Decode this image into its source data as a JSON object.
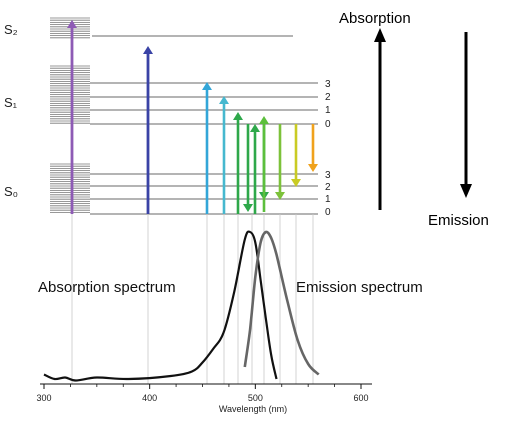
{
  "diagram": {
    "state_labels": {
      "s2": "S₂",
      "s1": "S₁",
      "s0": "S₀"
    },
    "vibrational_levels_s1": [
      "3",
      "2",
      "1",
      "0"
    ],
    "vibrational_levels_s0": [
      "3",
      "2",
      "1",
      "0"
    ],
    "legend": {
      "absorption": "Absorption",
      "emission": "Emission"
    },
    "spectra_labels": {
      "absorption": "Absorption spectrum",
      "emission": "Emission spectrum"
    },
    "arrow_colors": {
      "purple": "#8e5bb5",
      "blue": "#3a43a6",
      "cyan": "#33a6d8",
      "teal": "#46b8cf",
      "green": "#2ea84a",
      "lime": "#7cc23a",
      "yellow": "#c9cb24",
      "orange": "#f0a21c"
    }
  },
  "chart_data": {
    "type": "line",
    "xlabel": "Wavelength (nm)",
    "xlim": [
      300,
      600
    ],
    "x_ticks": [
      "300",
      "400",
      "500",
      "600"
    ],
    "series": [
      {
        "name": "Absorption spectrum",
        "x": [
          300,
          310,
          320,
          330,
          350,
          380,
          420,
          440,
          450,
          460,
          470,
          480,
          490,
          495,
          500,
          505,
          510,
          515,
          520
        ],
        "values": [
          0.05,
          0.02,
          0.03,
          0.01,
          0.03,
          0.02,
          0.04,
          0.07,
          0.13,
          0.22,
          0.33,
          0.6,
          0.95,
          1.0,
          0.93,
          0.68,
          0.42,
          0.18,
          0.02
        ]
      },
      {
        "name": "Emission spectrum",
        "x": [
          490,
          495,
          500,
          505,
          510,
          515,
          520,
          530,
          540,
          550,
          560
        ],
        "values": [
          0.1,
          0.35,
          0.7,
          0.93,
          1.0,
          0.96,
          0.85,
          0.55,
          0.28,
          0.12,
          0.05
        ]
      }
    ]
  }
}
